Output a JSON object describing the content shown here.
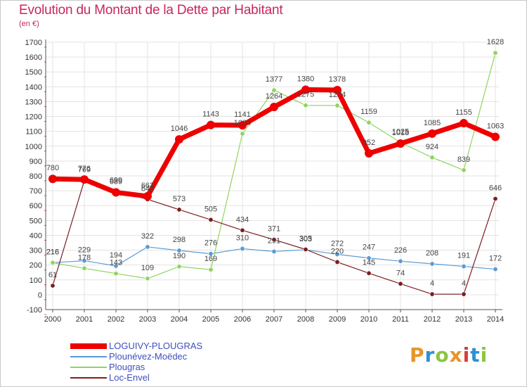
{
  "header": {
    "title": "Evolution du Montant de la Dette par Habitant",
    "unit": "(en €)"
  },
  "logo": {
    "text": "Proxiti",
    "colors": [
      "#e8942a",
      "#2e8fd6",
      "#8cc63f",
      "#e8942a",
      "#d93c3c",
      "#2e8fd6",
      "#8cc63f"
    ]
  },
  "chart_data": {
    "type": "line",
    "x": [
      "2000",
      "2001",
      "2002",
      "2003",
      "2004",
      "2005",
      "2006",
      "2007",
      "2008",
      "2009",
      "2010",
      "2011",
      "2012",
      "2013",
      "2014"
    ],
    "ylim": [
      -100,
      1700
    ],
    "yticks": [
      -100,
      0,
      100,
      200,
      300,
      400,
      500,
      600,
      700,
      800,
      900,
      1000,
      1100,
      1200,
      1300,
      1400,
      1500,
      1600,
      1700
    ],
    "grid": true,
    "legend_position": "bottom-left",
    "series": [
      {
        "name": "LOGUIVY-PLOUGRAS",
        "color": "#ee0000",
        "values": [
          780,
          776,
          689,
          663,
          1046,
          1143,
          1141,
          1264,
          1380,
          1378,
          952,
          1018,
          1085,
          1155,
          1063
        ],
        "labels": [
          "780",
          "776",
          "689",
          "663",
          "1046",
          "1143",
          "1141",
          "1264",
          "1380",
          "1378",
          "952",
          "1018",
          "1085",
          "1155",
          "1063"
        ]
      },
      {
        "name": "Plounévez-Moëdec",
        "color": "#5a9bd5",
        "values": [
          216,
          229,
          194,
          322,
          298,
          276,
          310,
          291,
          303,
          272,
          247,
          226,
          208,
          191,
          172
        ],
        "labels": [
          "216",
          "229",
          "194",
          "322",
          "298",
          "276",
          "310",
          "291",
          "303",
          "272",
          "247",
          "226",
          "208",
          "191",
          "172"
        ]
      },
      {
        "name": "Plougras",
        "color": "#90d460",
        "values": [
          216,
          178,
          143,
          109,
          190,
          169,
          1084,
          1377,
          1275,
          1274,
          1159,
          1025,
          924,
          839,
          1628
        ],
        "labels": [
          "216",
          "178",
          "143",
          "109",
          "190",
          "169",
          "1084",
          "1377",
          "1275",
          "1274",
          "1159",
          "1025",
          "924",
          "839",
          "1628"
        ]
      },
      {
        "name": "Loc-Envel",
        "color": "#7a1e1e",
        "values": [
          61,
          769,
          699,
          642,
          573,
          505,
          434,
          371,
          305,
          220,
          145,
          74,
          4,
          4,
          646
        ],
        "labels": [
          "61",
          "769",
          "699",
          "642",
          "573",
          "505",
          "434",
          "371",
          "305",
          "220",
          "145",
          "74",
          "4",
          "4",
          "646"
        ]
      }
    ]
  }
}
